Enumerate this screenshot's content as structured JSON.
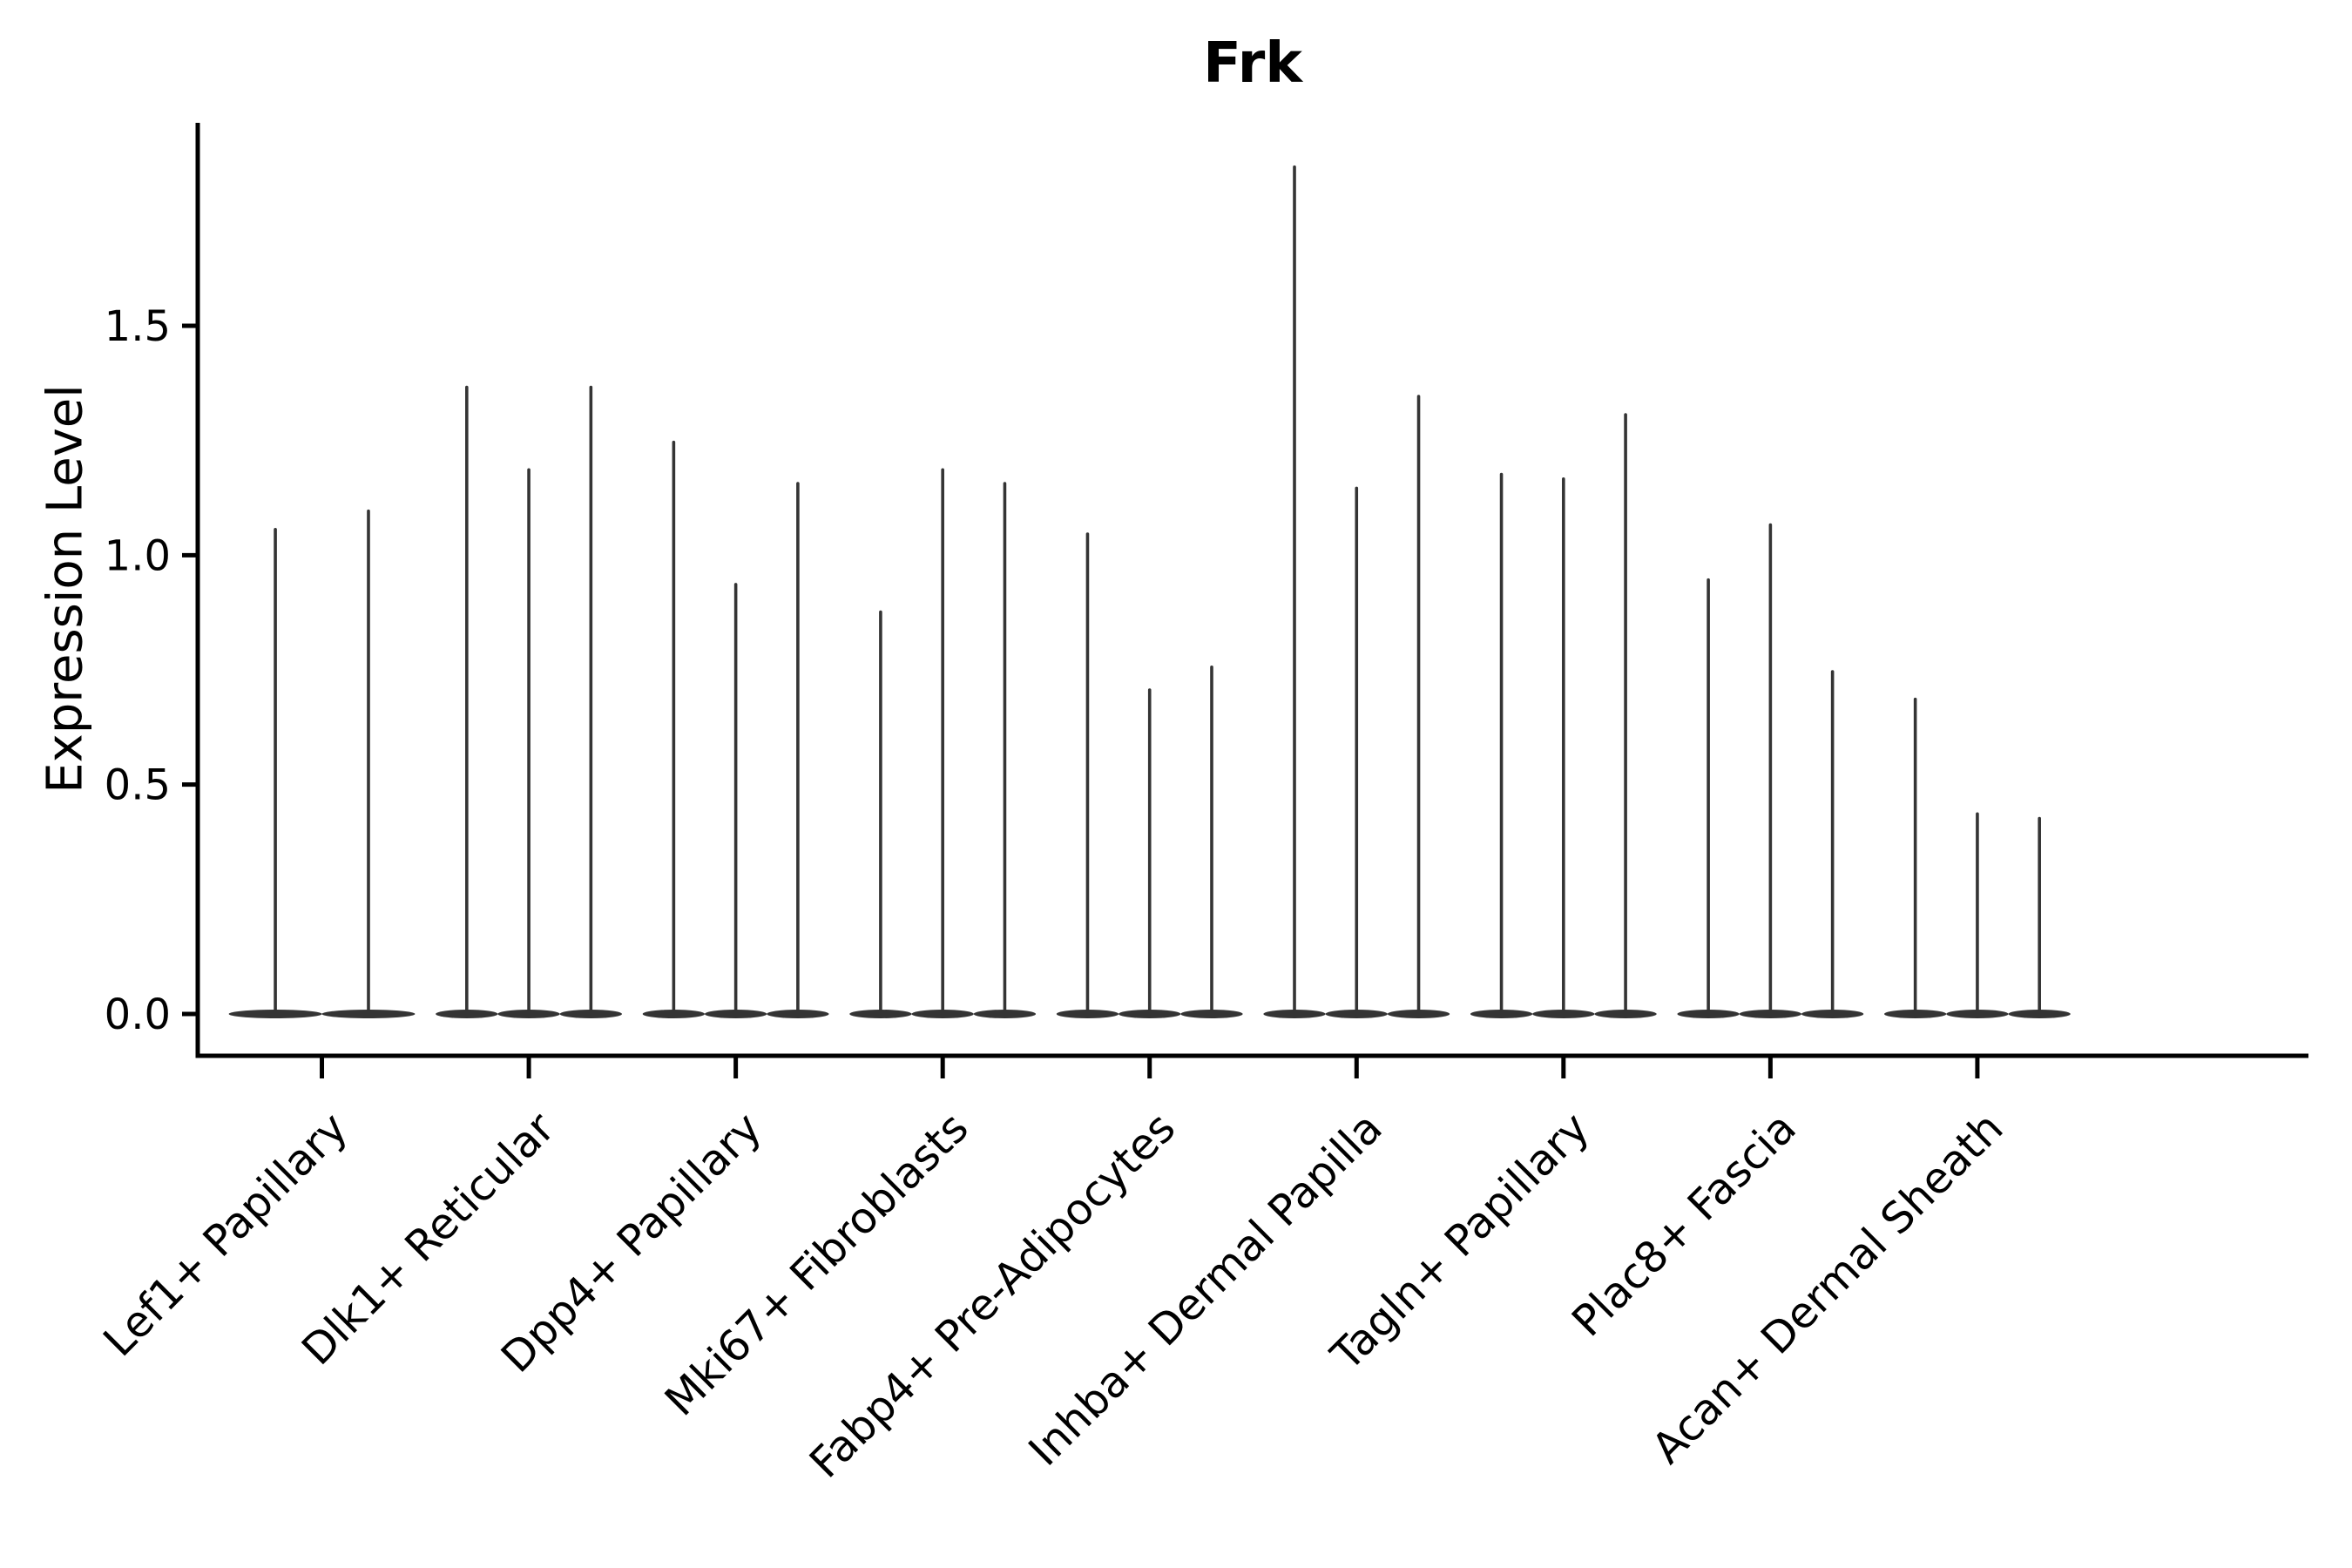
{
  "figure": {
    "title": "Frk",
    "y_axis": {
      "label": "Expression Level",
      "tick_labels": [
        "0.0",
        "0.5",
        "1.0",
        "1.5"
      ]
    },
    "x_axis": {
      "tick_labels": [
        "Lef1+ Papillary",
        "Dlk1+ Reticular",
        "Dpp4+ Papillary",
        "Mki67+ Fibroblasts",
        "Fabp4+ Pre-Adipocytes",
        "Inhba+ Dermal Papilla",
        "Tagln+ Papillary",
        "Plac8+ Fascia",
        "Acan+ Dermal Sheath"
      ]
    }
  },
  "chart_data": {
    "type": "violin",
    "title": "Frk",
    "ylabel": "Expression Level",
    "xlabel": "",
    "categories": [
      "Lef1+ Papillary",
      "Dlk1+ Reticular",
      "Dpp4+ Papillary",
      "Mki67+ Fibroblasts",
      "Fabp4+ Pre-Adipocytes",
      "Inhba+ Dermal Papilla",
      "Tagln+ Papillary",
      "Plac8+ Fascia",
      "Acan+ Dermal Sheath"
    ],
    "groups": [
      {
        "label": "Lef1+ Papillary",
        "violin_max_expression": [
          1.06,
          1.1
        ]
      },
      {
        "label": "Dlk1+ Reticular",
        "violin_max_expression": [
          1.37,
          1.19,
          1.37
        ]
      },
      {
        "label": "Dpp4+ Papillary",
        "violin_max_expression": [
          1.25,
          0.94,
          1.16
        ]
      },
      {
        "label": "Mki67+ Fibroblasts",
        "violin_max_expression": [
          0.88,
          1.19,
          1.16
        ]
      },
      {
        "label": "Fabp4+ Pre-Adipocytes",
        "violin_max_expression": [
          1.05,
          0.71,
          0.76
        ]
      },
      {
        "label": "Inhba+ Dermal Papilla",
        "violin_max_expression": [
          1.85,
          1.15,
          1.35
        ]
      },
      {
        "label": "Tagln+ Papillary",
        "violin_max_expression": [
          1.18,
          1.17,
          1.31
        ]
      },
      {
        "label": "Plac8+ Fascia",
        "violin_max_expression": [
          0.95,
          1.07,
          0.75
        ]
      },
      {
        "label": "Acan+ Dermal Sheath",
        "violin_max_expression": [
          0.69,
          0.44,
          0.43
        ]
      }
    ],
    "violin_shape_note": "Each violin is collapsed at expression 0 (flat wide base) with a needle-thin spike rising to its maximum expression value",
    "yticks": [
      0.0,
      0.5,
      1.0,
      1.5
    ],
    "ytick_labels": [
      "0.0",
      "0.5",
      "1.0",
      "1.5"
    ],
    "ylim": [
      -0.0925,
      1.9425
    ],
    "xtick_rotation_deg": 45,
    "grid": false,
    "legend": "none",
    "style": {
      "violin_color": "#343434",
      "axis_color": "#000000",
      "text_color": "#000000",
      "background": "#ffffff"
    }
  }
}
